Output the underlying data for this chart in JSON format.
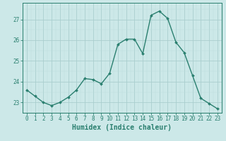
{
  "x": [
    0,
    1,
    2,
    3,
    4,
    5,
    6,
    7,
    8,
    9,
    10,
    11,
    12,
    13,
    14,
    15,
    16,
    17,
    18,
    19,
    20,
    21,
    22,
    23
  ],
  "y": [
    23.6,
    23.3,
    23.0,
    22.85,
    23.0,
    23.25,
    23.6,
    24.15,
    24.1,
    23.9,
    24.4,
    25.8,
    26.05,
    26.05,
    25.35,
    27.2,
    27.4,
    27.05,
    25.9,
    25.4,
    24.3,
    23.2,
    22.95,
    22.7
  ],
  "line_color": "#2a7f6f",
  "marker": "D",
  "marker_size": 2.0,
  "line_width": 1.0,
  "bg_color": "#cce8e8",
  "grid_color_major": "#aacece",
  "grid_color_minor": "#bcdcdc",
  "xlabel": "Humidex (Indice chaleur)",
  "xlabel_fontsize": 7,
  "xlabel_color": "#2a7f6f",
  "yticks": [
    23,
    24,
    25,
    26,
    27
  ],
  "xticks": [
    0,
    1,
    2,
    3,
    4,
    5,
    6,
    7,
    8,
    9,
    10,
    11,
    12,
    13,
    14,
    15,
    16,
    17,
    18,
    19,
    20,
    21,
    22,
    23
  ],
  "ylim": [
    22.5,
    27.8
  ],
  "xlim": [
    -0.5,
    23.5
  ],
  "tick_color": "#2a7f6f",
  "tick_fontsize": 5.5,
  "spine_color": "#2a7f6f"
}
